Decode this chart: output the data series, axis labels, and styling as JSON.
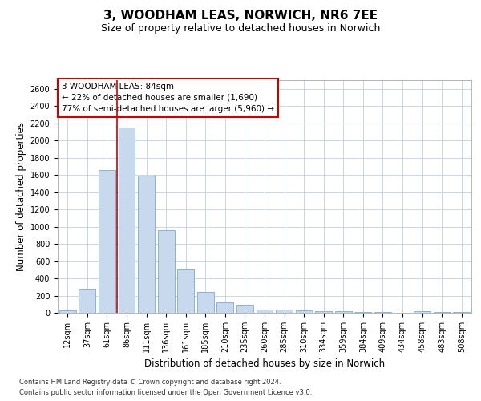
{
  "title1": "3, WOODHAM LEAS, NORWICH, NR6 7EE",
  "title2": "Size of property relative to detached houses in Norwich",
  "xlabel": "Distribution of detached houses by size in Norwich",
  "ylabel": "Number of detached properties",
  "bar_color": "#c8d8ed",
  "bar_edge_color": "#7aaad0",
  "annotation_line_color": "#cc0000",
  "categories": [
    "12sqm",
    "37sqm",
    "61sqm",
    "86sqm",
    "111sqm",
    "136sqm",
    "161sqm",
    "185sqm",
    "210sqm",
    "235sqm",
    "260sqm",
    "285sqm",
    "310sqm",
    "334sqm",
    "359sqm",
    "384sqm",
    "409sqm",
    "434sqm",
    "458sqm",
    "483sqm",
    "508sqm"
  ],
  "values": [
    25,
    280,
    1660,
    2150,
    1590,
    960,
    500,
    245,
    120,
    90,
    40,
    38,
    25,
    22,
    15,
    10,
    5,
    3,
    18,
    5,
    5
  ],
  "ylim": [
    0,
    2700
  ],
  "yticks": [
    0,
    200,
    400,
    600,
    800,
    1000,
    1200,
    1400,
    1600,
    1800,
    2000,
    2200,
    2400,
    2600
  ],
  "property_bar_index": 3,
  "annotation_text_line1": "3 WOODHAM LEAS: 84sqm",
  "annotation_text_line2": "← 22% of detached houses are smaller (1,690)",
  "annotation_text_line3": "77% of semi-detached houses are larger (5,960) →",
  "footer1": "Contains HM Land Registry data © Crown copyright and database right 2024.",
  "footer2": "Contains public sector information licensed under the Open Government Licence v3.0.",
  "bg_color": "#ffffff",
  "grid_color": "#c0d0e0",
  "title1_fontsize": 11,
  "title2_fontsize": 9,
  "axis_label_fontsize": 8.5,
  "tick_fontsize": 7,
  "footer_fontsize": 6,
  "annotation_fontsize": 7.5
}
